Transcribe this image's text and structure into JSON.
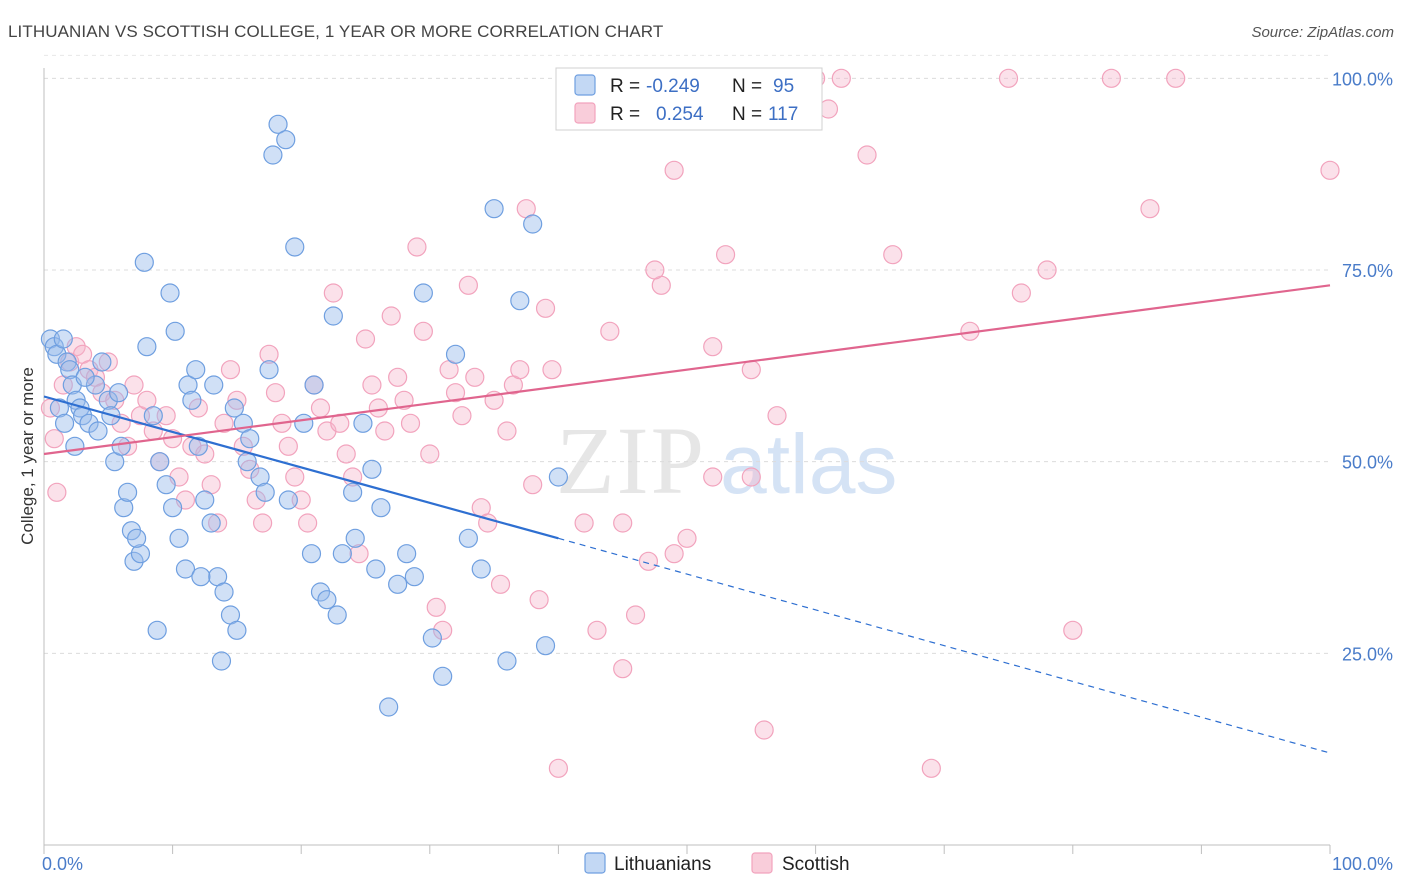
{
  "title": "LITHUANIAN VS SCOTTISH COLLEGE, 1 YEAR OR MORE CORRELATION CHART",
  "source": "Source: ZipAtlas.com",
  "watermark": {
    "zip": "ZIP",
    "atlas": "atlas"
  },
  "legend": {
    "r_label": "R =",
    "n_label": "N =",
    "series": [
      {
        "name": "Lithuanians",
        "r": "-0.249",
        "n": "95"
      },
      {
        "name": "Scottish",
        "r": "0.254",
        "n": "117"
      }
    ]
  },
  "chart_data": {
    "type": "scatter",
    "xlabel": "",
    "ylabel": "College, 1 year or more",
    "xlim": [
      0,
      100
    ],
    "ylim": [
      0,
      105
    ],
    "x_tick_labels": [
      "0.0%",
      "100.0%"
    ],
    "y_tick_labels": [
      "25.0%",
      "50.0%",
      "75.0%",
      "100.0%"
    ],
    "y_ticks": [
      25,
      50,
      75,
      100
    ],
    "grid": "horizontal dashed",
    "legend_position": "top-center",
    "colors": {
      "Lithuanians": "#6f9fe0",
      "Scottish": "#f2a3bd",
      "blue_line": "#2e6fd1",
      "pink_line": "#e0658e"
    },
    "series": [
      {
        "name": "Lithuanians",
        "trend": {
          "x0": 0,
          "y0": 58.5,
          "x1": 40,
          "y1": 40,
          "dashed_to_x": 100,
          "dashed_to_y": 12
        },
        "points": [
          [
            0.5,
            66
          ],
          [
            0.8,
            65
          ],
          [
            1,
            64
          ],
          [
            1.5,
            66
          ],
          [
            1.8,
            63
          ],
          [
            2,
            62
          ],
          [
            2.2,
            60
          ],
          [
            2.5,
            58
          ],
          [
            2.8,
            57
          ],
          [
            3,
            56
          ],
          [
            1.2,
            57
          ],
          [
            1.6,
            55
          ],
          [
            2.4,
            52
          ],
          [
            3.5,
            55
          ],
          [
            4,
            60
          ],
          [
            4.5,
            63
          ],
          [
            5,
            58
          ],
          [
            5.2,
            56
          ],
          [
            5.5,
            50
          ],
          [
            6,
            52
          ],
          [
            6.2,
            44
          ],
          [
            6.8,
            41
          ],
          [
            7,
            37
          ],
          [
            7.5,
            38
          ],
          [
            8,
            65
          ],
          [
            8.5,
            56
          ],
          [
            9,
            50
          ],
          [
            9.5,
            47
          ],
          [
            10,
            44
          ],
          [
            10.5,
            40
          ],
          [
            11,
            36
          ],
          [
            11.2,
            60
          ],
          [
            11.5,
            58
          ],
          [
            12,
            52
          ],
          [
            12.5,
            45
          ],
          [
            13,
            42
          ],
          [
            13.5,
            35
          ],
          [
            14,
            33
          ],
          [
            14.5,
            30
          ],
          [
            15,
            28
          ],
          [
            7.8,
            76
          ],
          [
            9.8,
            72
          ],
          [
            10.2,
            67
          ],
          [
            11.8,
            62
          ],
          [
            13.2,
            60
          ],
          [
            14.8,
            57
          ],
          [
            15.5,
            55
          ],
          [
            16,
            53
          ],
          [
            16.8,
            48
          ],
          [
            17.2,
            46
          ],
          [
            17.8,
            90
          ],
          [
            18.2,
            94
          ],
          [
            18.8,
            92
          ],
          [
            19.5,
            78
          ],
          [
            20.2,
            55
          ],
          [
            21,
            60
          ],
          [
            21.5,
            33
          ],
          [
            22,
            32
          ],
          [
            22.5,
            69
          ],
          [
            23.2,
            38
          ],
          [
            24,
            46
          ],
          [
            24.8,
            55
          ],
          [
            25.5,
            49
          ],
          [
            26.2,
            44
          ],
          [
            26.8,
            18
          ],
          [
            27.5,
            34
          ],
          [
            28.2,
            38
          ],
          [
            28.8,
            35
          ],
          [
            29.5,
            72
          ],
          [
            30.2,
            27
          ],
          [
            31,
            22
          ],
          [
            32,
            64
          ],
          [
            33,
            40
          ],
          [
            34,
            36
          ],
          [
            35,
            83
          ],
          [
            36,
            24
          ],
          [
            37,
            71
          ],
          [
            38,
            81
          ],
          [
            39,
            26
          ],
          [
            40,
            48
          ],
          [
            3.2,
            61
          ],
          [
            4.2,
            54
          ],
          [
            5.8,
            59
          ],
          [
            6.5,
            46
          ],
          [
            7.2,
            40
          ],
          [
            8.8,
            28
          ],
          [
            12.2,
            35
          ],
          [
            13.8,
            24
          ],
          [
            15.8,
            50
          ],
          [
            17.5,
            62
          ],
          [
            19,
            45
          ],
          [
            20.8,
            38
          ],
          [
            22.8,
            30
          ],
          [
            24.2,
            40
          ],
          [
            25.8,
            36
          ]
        ]
      },
      {
        "name": "Scottish",
        "trend": {
          "x0": 0,
          "y0": 51,
          "x1": 100,
          "y1": 73
        },
        "points": [
          [
            0.5,
            57
          ],
          [
            0.8,
            53
          ],
          [
            1,
            46
          ],
          [
            1.5,
            60
          ],
          [
            2,
            63
          ],
          [
            2.5,
            65
          ],
          [
            3,
            64
          ],
          [
            3.5,
            62
          ],
          [
            4,
            61
          ],
          [
            4.5,
            59
          ],
          [
            5,
            63
          ],
          [
            5.5,
            58
          ],
          [
            6,
            55
          ],
          [
            6.5,
            52
          ],
          [
            7,
            60
          ],
          [
            7.5,
            56
          ],
          [
            8,
            58
          ],
          [
            8.5,
            54
          ],
          [
            9,
            50
          ],
          [
            9.5,
            56
          ],
          [
            10,
            53
          ],
          [
            10.5,
            48
          ],
          [
            11,
            45
          ],
          [
            11.5,
            52
          ],
          [
            12,
            57
          ],
          [
            12.5,
            51
          ],
          [
            13,
            47
          ],
          [
            13.5,
            42
          ],
          [
            14,
            55
          ],
          [
            14.5,
            62
          ],
          [
            15,
            58
          ],
          [
            15.5,
            52
          ],
          [
            16,
            49
          ],
          [
            16.5,
            45
          ],
          [
            17,
            42
          ],
          [
            17.5,
            64
          ],
          [
            18,
            59
          ],
          [
            18.5,
            55
          ],
          [
            19,
            52
          ],
          [
            19.5,
            48
          ],
          [
            20,
            45
          ],
          [
            20.5,
            42
          ],
          [
            21,
            60
          ],
          [
            21.5,
            57
          ],
          [
            22,
            54
          ],
          [
            22.5,
            72
          ],
          [
            23,
            55
          ],
          [
            23.5,
            51
          ],
          [
            24,
            48
          ],
          [
            24.5,
            38
          ],
          [
            25,
            66
          ],
          [
            25.5,
            60
          ],
          [
            26,
            57
          ],
          [
            26.5,
            54
          ],
          [
            27,
            69
          ],
          [
            27.5,
            61
          ],
          [
            28,
            58
          ],
          [
            28.5,
            55
          ],
          [
            29,
            78
          ],
          [
            29.5,
            67
          ],
          [
            30,
            51
          ],
          [
            30.5,
            31
          ],
          [
            31,
            28
          ],
          [
            31.5,
            62
          ],
          [
            32,
            59
          ],
          [
            32.5,
            56
          ],
          [
            33,
            73
          ],
          [
            33.5,
            61
          ],
          [
            34,
            44
          ],
          [
            34.5,
            42
          ],
          [
            35,
            58
          ],
          [
            35.5,
            34
          ],
          [
            36,
            54
          ],
          [
            36.5,
            60
          ],
          [
            37,
            62
          ],
          [
            37.5,
            83
          ],
          [
            38,
            47
          ],
          [
            38.5,
            32
          ],
          [
            39,
            70
          ],
          [
            39.5,
            62
          ],
          [
            40,
            10
          ],
          [
            41,
            95
          ],
          [
            42,
            42
          ],
          [
            43,
            28
          ],
          [
            44,
            67
          ],
          [
            45,
            23
          ],
          [
            46,
            30
          ],
          [
            47,
            37
          ],
          [
            48,
            73
          ],
          [
            49,
            88
          ],
          [
            50,
            40
          ],
          [
            51,
            95
          ],
          [
            52,
            65
          ],
          [
            53,
            77
          ],
          [
            55,
            48
          ],
          [
            56,
            15
          ],
          [
            57,
            56
          ],
          [
            60,
            100
          ],
          [
            61,
            96
          ],
          [
            62,
            100
          ],
          [
            64,
            90
          ],
          [
            66,
            77
          ],
          [
            69,
            10
          ],
          [
            72,
            67
          ],
          [
            75,
            100
          ],
          [
            76,
            72
          ],
          [
            78,
            75
          ],
          [
            80,
            28
          ],
          [
            83,
            100
          ],
          [
            86,
            83
          ],
          [
            88,
            100
          ],
          [
            100,
            88
          ],
          [
            47.5,
            75
          ],
          [
            55,
            62
          ],
          [
            45,
            42
          ],
          [
            52,
            48
          ],
          [
            49,
            38
          ]
        ]
      }
    ]
  }
}
